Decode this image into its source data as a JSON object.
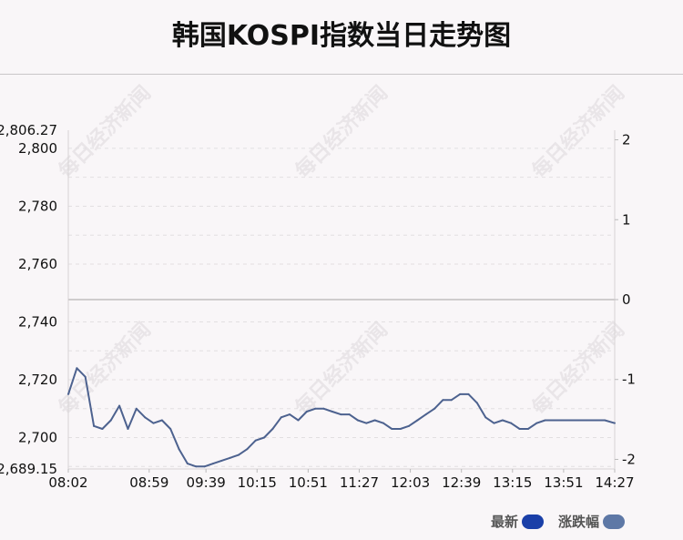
{
  "title": "韩国KOSPI指数当日走势图",
  "watermark": "每日经济新闻",
  "legend": [
    {
      "label": "最新",
      "color": "#1a3fa8"
    },
    {
      "label": "涨跌幅",
      "color": "#5e78a6"
    }
  ],
  "colors": {
    "line": "#4d628f",
    "baseline": "#cfcccd",
    "grid": "#e2dfe1"
  },
  "chart_data": {
    "type": "line",
    "title": "韩国KOSPI指数当日走势图",
    "x_ticks": [
      "08:02",
      "08:59",
      "09:39",
      "10:15",
      "10:51",
      "11:27",
      "12:03",
      "12:39",
      "13:15",
      "13:51",
      "14:27"
    ],
    "y_left_ticks": [
      "2,806.27",
      "2,800",
      "2,780",
      "2,760",
      "2,740",
      "2,720",
      "2,700",
      "2,689.15"
    ],
    "y_left_range": [
      2689.15,
      2806.27
    ],
    "y_right_ticks": [
      "2",
      "1",
      "0",
      "-1",
      "-2"
    ],
    "y_right_range": [
      -2.12,
      2.12
    ],
    "previous_close": 2747.71,
    "grid": true,
    "series": [
      {
        "x": [
          "08:02",
          "08:08",
          "08:14",
          "08:20",
          "08:26",
          "08:32",
          "08:38",
          "08:44",
          "08:50",
          "08:56",
          "09:02",
          "09:08",
          "09:14",
          "09:20",
          "09:26",
          "09:32",
          "09:38",
          "09:44",
          "09:50",
          "09:56",
          "10:02",
          "10:08",
          "10:14",
          "10:20",
          "10:26",
          "10:32",
          "10:38",
          "10:44",
          "10:50",
          "10:56",
          "11:02",
          "11:08",
          "11:14",
          "11:20",
          "11:26",
          "11:32",
          "11:38",
          "11:44",
          "11:50",
          "11:56",
          "12:02",
          "12:08",
          "12:14",
          "12:20",
          "12:26",
          "12:32",
          "12:38",
          "12:44",
          "12:50",
          "12:56",
          "13:02",
          "13:08",
          "13:14",
          "13:20",
          "13:26",
          "13:32",
          "13:38",
          "13:44",
          "13:50",
          "13:56",
          "14:02",
          "14:08",
          "14:14",
          "14:20",
          "14:27"
        ],
        "values": [
          2715,
          2724,
          2721,
          2704,
          2703,
          2706,
          2711,
          2703,
          2710,
          2707,
          2705,
          2706,
          2703,
          2696,
          2691,
          2690,
          2690,
          2691,
          2692,
          2693,
          2694,
          2696,
          2699,
          2700,
          2703,
          2707,
          2708,
          2706,
          2709,
          2710,
          2710,
          2709,
          2708,
          2708,
          2706,
          2705,
          2706,
          2705,
          2703,
          2703,
          2704,
          2706,
          2708,
          2710,
          2713,
          2713,
          2715,
          2715,
          2712,
          2707,
          2705,
          2706,
          2705,
          2703,
          2703,
          2705,
          2706,
          2706,
          2706,
          2706,
          2706,
          2706,
          2706,
          2706,
          2705
        ]
      }
    ]
  }
}
